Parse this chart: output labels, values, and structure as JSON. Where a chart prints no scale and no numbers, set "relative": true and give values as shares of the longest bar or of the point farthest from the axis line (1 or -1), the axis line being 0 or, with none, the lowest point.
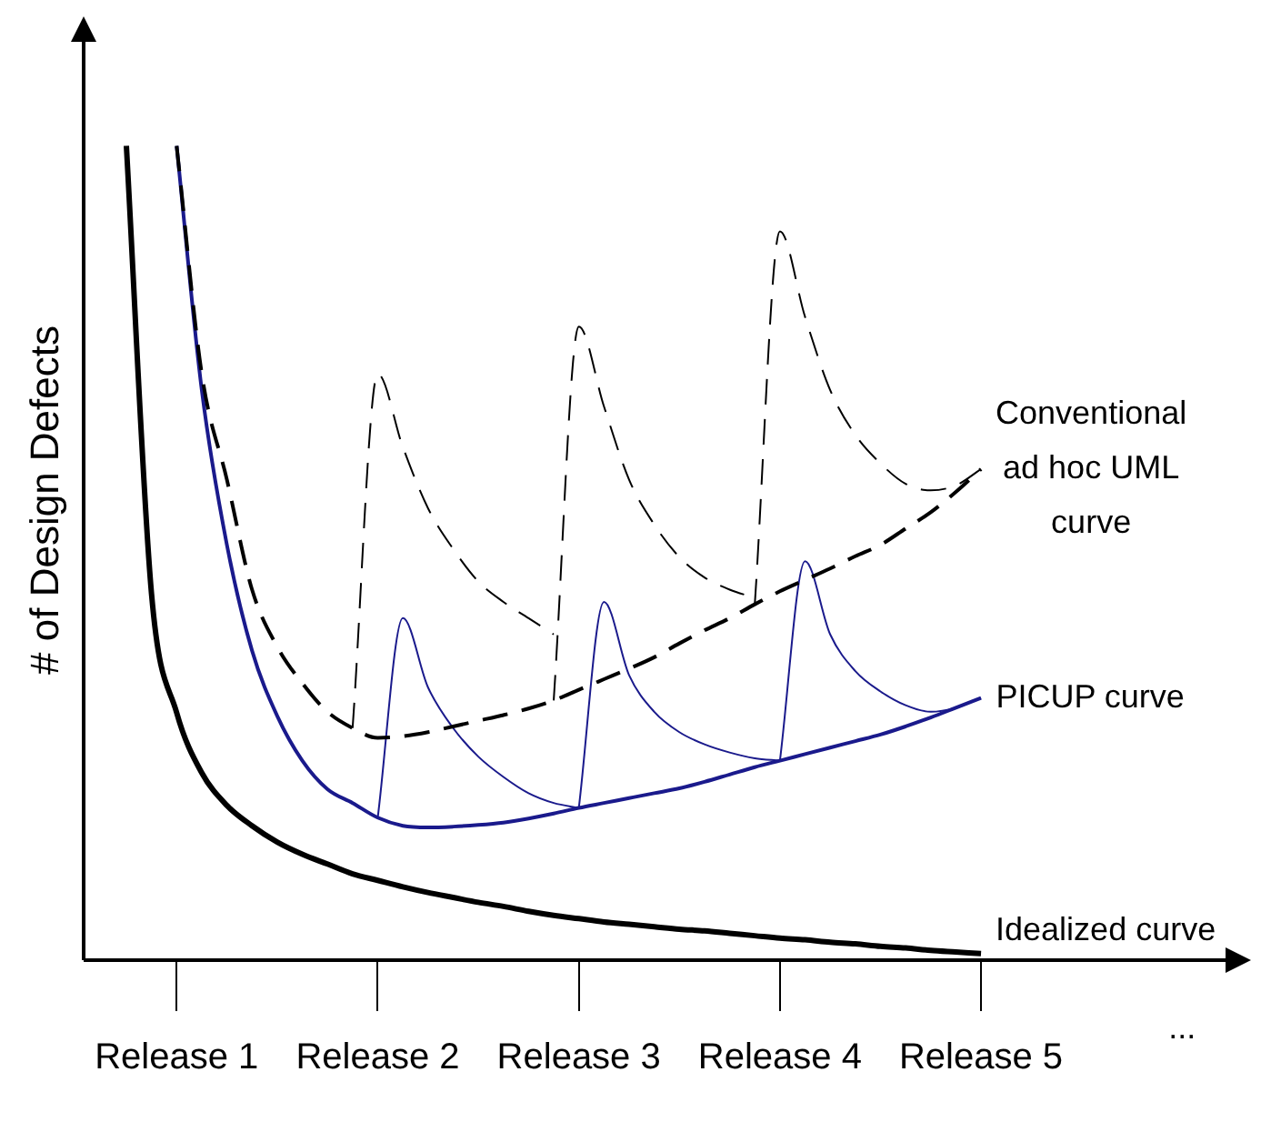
{
  "chart_data": {
    "type": "line",
    "relative": true,
    "ylabel": "# of Design Defects",
    "categories": [
      null,
      null,
      "Release 1",
      null,
      null,
      null,
      null,
      null,
      null,
      null,
      "Release 2",
      null,
      null,
      null,
      null,
      null,
      null,
      null,
      "Release 3",
      null,
      null,
      null,
      null,
      null,
      null,
      null,
      "Release 4",
      null,
      null,
      null,
      null,
      null,
      null,
      null,
      "Release 5"
    ],
    "grid": false,
    "legend": false,
    "marker": "none",
    "annotations": [
      "..."
    ],
    "series": [
      {
        "name": "Conventional ad hoc UML curve",
        "color": "#000000",
        "line_style": "dashed",
        "values": [
          null,
          null,
          1.0,
          0.72,
          0.59,
          0.455,
          0.385,
          0.34,
          0.305,
          0.285,
          0.273,
          0.275,
          0.28,
          0.287,
          0.294,
          0.301,
          0.309,
          0.319,
          0.332,
          0.345,
          0.358,
          0.372,
          0.389,
          0.405,
          0.42,
          0.437,
          0.453,
          0.467,
          0.481,
          0.496,
          0.51,
          0.53,
          0.55,
          0.575,
          0.603
        ]
      },
      {
        "name": "PICUP curve",
        "color": "#1a1a8c",
        "line_style": "solid",
        "values": [
          null,
          null,
          1.0,
          0.7,
          0.51,
          0.38,
          0.3,
          0.245,
          0.21,
          0.193,
          0.175,
          0.165,
          0.163,
          0.164,
          0.166,
          0.169,
          0.174,
          0.18,
          0.187,
          0.193,
          0.199,
          0.205,
          0.211,
          0.219,
          0.228,
          0.237,
          0.245,
          0.253,
          0.261,
          0.269,
          0.277,
          0.287,
          0.298,
          0.31,
          0.322
        ]
      },
      {
        "name": "Idealized curve",
        "color": "#000000",
        "line_style": "solid",
        "values": [
          1.0,
          0.45,
          0.304,
          0.23,
          0.19,
          0.165,
          0.145,
          0.13,
          0.118,
          0.106,
          0.098,
          0.09,
          0.083,
          0.077,
          0.071,
          0.066,
          0.06,
          0.055,
          0.051,
          0.047,
          0.044,
          0.041,
          0.038,
          0.036,
          0.033,
          0.03,
          0.027,
          0.025,
          0.022,
          0.02,
          0.017,
          0.015,
          0.012,
          0.01,
          0.008
        ]
      },
      {
        "color": "#000000",
        "line_style": "dashed",
        "values": [
          null,
          null,
          null,
          null,
          null,
          null,
          null,
          null,
          null,
          0.285,
          0.72,
          0.63,
          0.555,
          0.505,
          0.465,
          0.44,
          0.42,
          0.4,
          null,
          null,
          null,
          null,
          null,
          null,
          null,
          null,
          null,
          null,
          null,
          null,
          null,
          null,
          null,
          null,
          null
        ]
      },
      {
        "color": "#000000",
        "line_style": "dashed",
        "values": [
          null,
          null,
          null,
          null,
          null,
          null,
          null,
          null,
          null,
          null,
          null,
          null,
          null,
          null,
          null,
          null,
          null,
          0.319,
          0.778,
          0.68,
          0.59,
          0.535,
          0.495,
          0.47,
          0.455,
          0.445,
          null,
          null,
          null,
          null,
          null,
          null,
          null,
          null,
          null
        ]
      },
      {
        "color": "#000000",
        "line_style": "dashed",
        "values": [
          null,
          null,
          null,
          null,
          null,
          null,
          null,
          null,
          null,
          null,
          null,
          null,
          null,
          null,
          null,
          null,
          null,
          null,
          null,
          null,
          null,
          null,
          null,
          null,
          null,
          0.437,
          0.895,
          0.79,
          0.7,
          0.645,
          0.61,
          0.585,
          0.577,
          0.583,
          0.603
        ]
      },
      {
        "color": "#1a1a8c",
        "line_style": "solid",
        "values": [
          null,
          null,
          null,
          null,
          null,
          null,
          null,
          null,
          null,
          null,
          0.175,
          0.42,
          0.335,
          0.285,
          0.25,
          0.225,
          0.205,
          0.193,
          0.187,
          null,
          null,
          null,
          null,
          null,
          null,
          null,
          null,
          null,
          null,
          null,
          null,
          null,
          null,
          null,
          null
        ]
      },
      {
        "color": "#1a1a8c",
        "line_style": "solid",
        "values": [
          null,
          null,
          null,
          null,
          null,
          null,
          null,
          null,
          null,
          null,
          null,
          null,
          null,
          null,
          null,
          null,
          null,
          null,
          0.187,
          0.44,
          0.35,
          0.305,
          0.28,
          0.265,
          0.255,
          0.248,
          0.245,
          null,
          null,
          null,
          null,
          null,
          null,
          null,
          null
        ]
      },
      {
        "color": "#1a1a8c",
        "line_style": "solid",
        "values": [
          null,
          null,
          null,
          null,
          null,
          null,
          null,
          null,
          null,
          null,
          null,
          null,
          null,
          null,
          null,
          null,
          null,
          null,
          null,
          null,
          null,
          null,
          null,
          null,
          null,
          null,
          0.245,
          0.49,
          0.4,
          0.355,
          0.33,
          0.313,
          0.305,
          0.31,
          0.322
        ]
      }
    ]
  }
}
